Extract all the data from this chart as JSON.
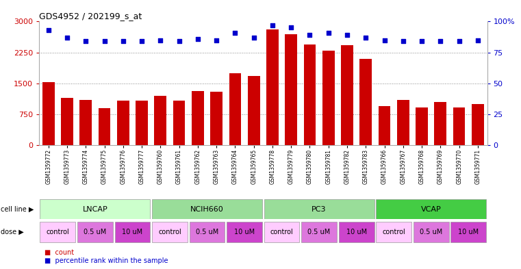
{
  "title": "GDS4952 / 202199_s_at",
  "samples": [
    "GSM1359772",
    "GSM1359773",
    "GSM1359774",
    "GSM1359775",
    "GSM1359776",
    "GSM1359777",
    "GSM1359760",
    "GSM1359761",
    "GSM1359762",
    "GSM1359763",
    "GSM1359764",
    "GSM1359765",
    "GSM1359778",
    "GSM1359779",
    "GSM1359780",
    "GSM1359781",
    "GSM1359782",
    "GSM1359783",
    "GSM1359766",
    "GSM1359767",
    "GSM1359768",
    "GSM1359769",
    "GSM1359770",
    "GSM1359771"
  ],
  "bar_heights": [
    1530,
    1150,
    1100,
    900,
    1080,
    1080,
    1200,
    1080,
    1320,
    1300,
    1750,
    1680,
    2800,
    2700,
    2450,
    2300,
    2420,
    2100,
    950,
    1100,
    920,
    1050,
    920,
    1000
  ],
  "percentile_ranks": [
    93,
    87,
    84,
    84,
    84,
    84,
    85,
    84,
    86,
    85,
    91,
    87,
    97,
    95,
    89,
    91,
    89,
    87,
    85,
    84,
    84,
    84,
    84,
    85
  ],
  "bar_color": "#cc0000",
  "dot_color": "#0000cc",
  "ylim_left": [
    0,
    3000
  ],
  "ylim_right": [
    0,
    100
  ],
  "yticks_left": [
    0,
    750,
    1500,
    2250,
    3000
  ],
  "yticks_right": [
    0,
    25,
    50,
    75,
    100
  ],
  "cell_lines": [
    {
      "label": "LNCAP",
      "start": 0,
      "end": 6,
      "color": "#ccffcc"
    },
    {
      "label": "NCIH660",
      "start": 6,
      "end": 12,
      "color": "#99dd99"
    },
    {
      "label": "PC3",
      "start": 12,
      "end": 18,
      "color": "#99dd99"
    },
    {
      "label": "VCAP",
      "start": 18,
      "end": 24,
      "color": "#44cc44"
    }
  ],
  "doses": [
    {
      "label": "control",
      "start": 0,
      "end": 2,
      "color": "#ffccff"
    },
    {
      "label": "0.5 uM",
      "start": 2,
      "end": 4,
      "color": "#dd77dd"
    },
    {
      "label": "10 uM",
      "start": 4,
      "end": 6,
      "color": "#cc44cc"
    },
    {
      "label": "control",
      "start": 6,
      "end": 8,
      "color": "#ffccff"
    },
    {
      "label": "0.5 uM",
      "start": 8,
      "end": 10,
      "color": "#dd77dd"
    },
    {
      "label": "10 uM",
      "start": 10,
      "end": 12,
      "color": "#cc44cc"
    },
    {
      "label": "control",
      "start": 12,
      "end": 14,
      "color": "#ffccff"
    },
    {
      "label": "0.5 uM",
      "start": 14,
      "end": 16,
      "color": "#dd77dd"
    },
    {
      "label": "10 uM",
      "start": 16,
      "end": 18,
      "color": "#cc44cc"
    },
    {
      "label": "control",
      "start": 18,
      "end": 20,
      "color": "#ffccff"
    },
    {
      "label": "0.5 uM",
      "start": 20,
      "end": 22,
      "color": "#dd77dd"
    },
    {
      "label": "10 uM",
      "start": 22,
      "end": 24,
      "color": "#cc44cc"
    }
  ],
  "grid_color": "#888888",
  "bg_color": "#ffffff",
  "axis_color_left": "#cc0000",
  "axis_color_right": "#0000cc",
  "cell_line_label": "cell line",
  "dose_label": "dose",
  "legend_count_label": "count",
  "legend_pct_label": "percentile rank within the sample",
  "legend_count_color": "#cc0000",
  "legend_pct_color": "#0000cc"
}
